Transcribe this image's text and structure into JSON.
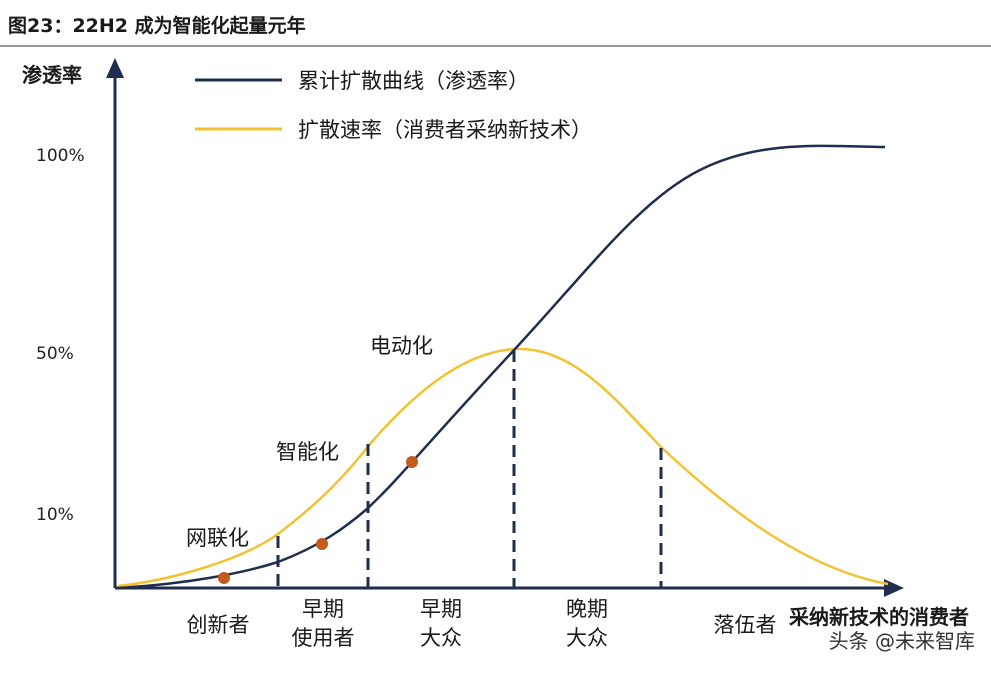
{
  "figure": {
    "title": "图23：22H2 成为智能化起量元年"
  },
  "chart_data": {
    "type": "line",
    "ylabel": "渗透率",
    "xlabel": "采纳新技术的消费者",
    "y_ticks": [
      "100%",
      "50%",
      "10%"
    ],
    "legend": {
      "placement": "top-left",
      "items": [
        {
          "label": "累计扩散曲线（渗透率）",
          "color": "#1f2d4e"
        },
        {
          "label": "扩散速率（消费者采纳新技术）",
          "color": "#f2c230"
        }
      ]
    },
    "series": [
      {
        "name": "累计扩散曲线（渗透率）",
        "color": "#1f2d4e",
        "shape": "s-curve",
        "values_percent": [
          0,
          100
        ]
      },
      {
        "name": "扩散速率（消费者采纳新技术）",
        "color": "#f2c230",
        "shape": "bell-curve",
        "peak_percent": 50
      }
    ],
    "milestones": [
      {
        "label": "网联化",
        "marker_color": "#c45a1e"
      },
      {
        "label": "智能化",
        "marker_color": "#c45a1e"
      },
      {
        "label": "电动化"
      }
    ],
    "segments": [
      {
        "lines": [
          "创新者"
        ]
      },
      {
        "lines": [
          "早期",
          "使用者"
        ]
      },
      {
        "lines": [
          "早期",
          "大众"
        ]
      },
      {
        "lines": [
          "晚期",
          "大众"
        ]
      },
      {
        "lines": [
          "落伍者"
        ]
      }
    ]
  },
  "watermark": {
    "text": "头条 @未来智库"
  }
}
